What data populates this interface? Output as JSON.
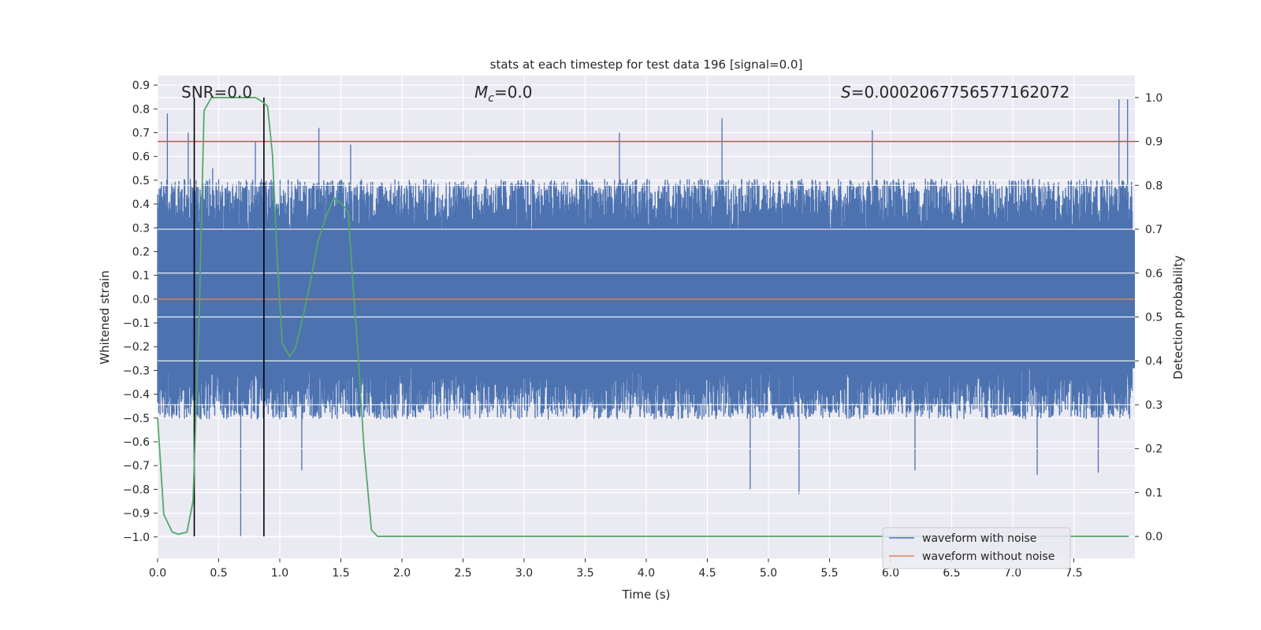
{
  "chart_data": {
    "type": "line",
    "title": "stats at each timestep for test data 196 [signal=0.0]",
    "xlabel": "Time (s)",
    "ylabel": "Whitened strain",
    "ylabel_right": "Detection probability",
    "xlim": [
      0.0,
      8.0
    ],
    "ylim": [
      -1.09,
      0.94
    ],
    "ylim_right": [
      -0.05,
      1.05
    ],
    "x_ticks": [
      0.0,
      0.5,
      1.0,
      1.5,
      2.0,
      2.5,
      3.0,
      3.5,
      4.0,
      4.5,
      5.0,
      5.5,
      6.0,
      6.5,
      7.0,
      7.5
    ],
    "x_tick_labels": [
      "0.0",
      "0.5",
      "1.0",
      "1.5",
      "2.0",
      "2.5",
      "3.0",
      "3.5",
      "4.0",
      "4.5",
      "5.0",
      "5.5",
      "6.0",
      "6.5",
      "7.0",
      "7.5"
    ],
    "y_ticks": [
      -1.0,
      -0.9,
      -0.8,
      -0.7,
      -0.6,
      -0.5,
      -0.4,
      -0.3,
      -0.2,
      -0.1,
      0.0,
      0.1,
      0.2,
      0.3,
      0.4,
      0.5,
      0.6,
      0.7,
      0.8,
      0.9
    ],
    "y_tick_labels": [
      "−1.0",
      "−0.9",
      "−0.8",
      "−0.7",
      "−0.6",
      "−0.5",
      "−0.4",
      "−0.3",
      "−0.2",
      "−0.1",
      "0.0",
      "0.1",
      "0.2",
      "0.3",
      "0.4",
      "0.5",
      "0.6",
      "0.7",
      "0.8",
      "0.9"
    ],
    "y_right_ticks": [
      0.0,
      0.1,
      0.2,
      0.3,
      0.4,
      0.5,
      0.6,
      0.7,
      0.8,
      0.9,
      1.0
    ],
    "y_right_tick_labels": [
      "0.0",
      "0.1",
      "0.2",
      "0.3",
      "0.4",
      "0.5",
      "0.6",
      "0.7",
      "0.8",
      "0.9",
      "1.0"
    ],
    "grid": true,
    "legend_position": "lower-right",
    "annotations": {
      "snr": "SNR=0.0",
      "mc_symbol": "M",
      "mc_subscript": "c",
      "mc_value": "=0.0",
      "s_symbol": "S",
      "s_value": "=0.0002067756577162072"
    },
    "series": [
      {
        "name": "waveform with noise",
        "color": "#4c72b0",
        "axis": "left",
        "envelope_typical": [
          -0.46,
          0.46
        ],
        "peaks": [
          {
            "x": 0.08,
            "y": 0.78
          },
          {
            "x": 0.25,
            "y": 0.7
          },
          {
            "x": 0.45,
            "y": 0.55
          },
          {
            "x": 0.8,
            "y": 0.66
          },
          {
            "x": 1.32,
            "y": 0.72
          },
          {
            "x": 1.58,
            "y": 0.65
          },
          {
            "x": 3.78,
            "y": 0.7
          },
          {
            "x": 4.62,
            "y": 0.76
          },
          {
            "x": 5.85,
            "y": 0.71
          },
          {
            "x": 7.87,
            "y": 0.84
          },
          {
            "x": 7.94,
            "y": 0.84
          }
        ],
        "troughs": [
          {
            "x": 0.68,
            "y": -1.0
          },
          {
            "x": 1.18,
            "y": -0.72
          },
          {
            "x": 4.85,
            "y": -0.8
          },
          {
            "x": 5.25,
            "y": -0.82
          },
          {
            "x": 6.2,
            "y": -0.72
          },
          {
            "x": 7.2,
            "y": -0.74
          },
          {
            "x": 7.7,
            "y": -0.73
          }
        ]
      },
      {
        "name": "waveform without noise",
        "color": "#dd8452",
        "axis": "left",
        "x": [
          0.0,
          8.0
        ],
        "y": [
          0.0,
          0.0
        ]
      },
      {
        "name": "",
        "color": "#55a868",
        "axis": "right",
        "x": [
          0.0,
          0.05,
          0.12,
          0.17,
          0.24,
          0.29,
          0.34,
          0.38,
          0.44,
          0.5,
          0.6,
          0.7,
          0.8,
          0.86,
          0.9,
          0.94,
          0.98,
          1.02,
          1.08,
          1.13,
          1.19,
          1.25,
          1.31,
          1.38,
          1.44,
          1.5,
          1.56,
          1.6,
          1.64,
          1.69,
          1.75,
          1.8,
          1.85,
          2.0,
          7.95
        ],
        "y": [
          0.27,
          0.05,
          0.01,
          0.005,
          0.01,
          0.08,
          0.5,
          0.97,
          1.0,
          1.0,
          1.0,
          1.0,
          1.0,
          0.99,
          0.98,
          0.87,
          0.63,
          0.44,
          0.41,
          0.43,
          0.5,
          0.58,
          0.67,
          0.73,
          0.77,
          0.76,
          0.74,
          0.57,
          0.42,
          0.2,
          0.015,
          0.0,
          0.0,
          0.0,
          0.0
        ]
      }
    ],
    "threshold_line": {
      "axis": "right",
      "value": 0.9,
      "color": "#c44e52"
    },
    "vertical_markers": {
      "color": "#000000",
      "x": [
        0.3,
        0.87
      ],
      "y_range_right": [
        0.0,
        1.0
      ]
    }
  }
}
